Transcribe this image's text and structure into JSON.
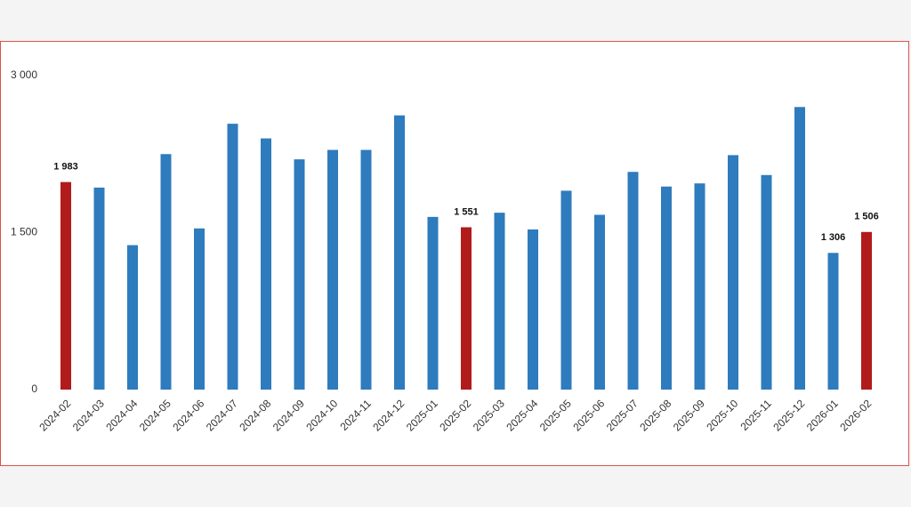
{
  "chart_data": {
    "type": "bar",
    "categories": [
      "2024-02",
      "2024-03",
      "2024-04",
      "2024-05",
      "2024-06",
      "2024-07",
      "2024-08",
      "2024-09",
      "2024-10",
      "2024-11",
      "2024-12",
      "2025-01",
      "2025-02",
      "2025-03",
      "2025-04",
      "2025-05",
      "2025-06",
      "2025-07",
      "2025-08",
      "2025-09",
      "2025-10",
      "2025-11",
      "2025-12",
      "2026-01",
      "2026-02"
    ],
    "values": [
      1983,
      1930,
      1380,
      2250,
      1540,
      2540,
      2400,
      2200,
      2290,
      2290,
      2620,
      1650,
      1551,
      1690,
      1530,
      1900,
      1670,
      2080,
      1940,
      1970,
      2240,
      2050,
      2700,
      1306,
      1506
    ],
    "value_labels": [
      "1 983",
      null,
      null,
      null,
      null,
      null,
      null,
      null,
      null,
      null,
      null,
      null,
      "1 551",
      null,
      null,
      null,
      null,
      null,
      null,
      null,
      null,
      null,
      null,
      "1 306",
      "1 506"
    ],
    "colors": [
      "#b11b1b",
      "#2e7bbd",
      "#2e7bbd",
      "#2e7bbd",
      "#2e7bbd",
      "#2e7bbd",
      "#2e7bbd",
      "#2e7bbd",
      "#2e7bbd",
      "#2e7bbd",
      "#2e7bbd",
      "#2e7bbd",
      "#b11b1b",
      "#2e7bbd",
      "#2e7bbd",
      "#2e7bbd",
      "#2e7bbd",
      "#2e7bbd",
      "#2e7bbd",
      "#2e7bbd",
      "#2e7bbd",
      "#2e7bbd",
      "#2e7bbd",
      "#2e7bbd",
      "#b11b1b"
    ],
    "ylim": [
      0,
      3000
    ],
    "yticks": [
      0,
      {
        "value": 1500,
        "label": "1 500"
      },
      {
        "value": 3000,
        "label": "3 000"
      }
    ],
    "grid": false
  }
}
